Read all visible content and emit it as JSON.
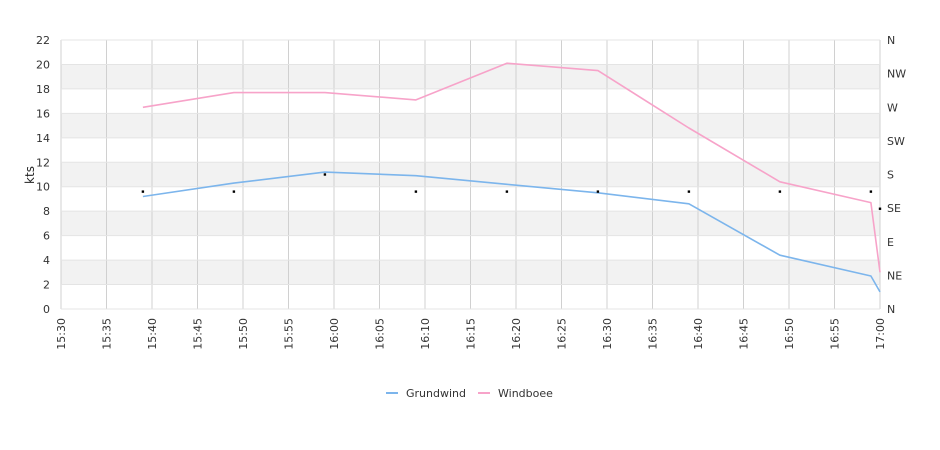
{
  "chart_data": {
    "type": "line",
    "ylabel": "kts",
    "ylim": [
      0,
      22
    ],
    "y_ticks": [
      "0",
      "2",
      "4",
      "6",
      "8",
      "10",
      "12",
      "14",
      "16",
      "18",
      "20",
      "22"
    ],
    "y2_ticks": [
      "N",
      "NE",
      "E",
      "SE",
      "S",
      "SW",
      "W",
      "NW",
      "N"
    ],
    "x_ticks": [
      "15:30",
      "15:35",
      "15:40",
      "15:45",
      "15:50",
      "15:55",
      "16:00",
      "16:05",
      "16:10",
      "16:15",
      "16:20",
      "16:25",
      "16:30",
      "16:35",
      "16:40",
      "16:45",
      "16:50",
      "16:55",
      "17:00"
    ],
    "x_range": [
      "15:30",
      "17:00"
    ],
    "grid": true,
    "legend_position": "bottom",
    "series": [
      {
        "name": "Grundwind",
        "color": "#7cb5ec",
        "x": [
          "15:39",
          "15:49",
          "15:59",
          "16:09",
          "16:19",
          "16:29",
          "16:39",
          "16:49",
          "16:59",
          "17:00"
        ],
        "values": [
          9.2,
          10.3,
          11.2,
          10.9,
          10.2,
          9.5,
          8.6,
          4.4,
          2.7,
          1.4
        ]
      },
      {
        "name": "Windboee",
        "color": "#f7a3c9",
        "x": [
          "15:39",
          "15:49",
          "15:59",
          "16:09",
          "16:19",
          "16:29",
          "16:39",
          "16:49",
          "16:59",
          "17:00"
        ],
        "values": [
          16.5,
          17.7,
          17.7,
          17.1,
          20.1,
          19.5,
          14.8,
          10.4,
          8.7,
          3.0
        ]
      }
    ],
    "direction_markers": {
      "x": [
        "15:39",
        "15:49",
        "15:59",
        "16:09",
        "16:19",
        "16:29",
        "16:39",
        "16:49",
        "16:59",
        "17:00"
      ],
      "values": [
        9.6,
        9.6,
        11.0,
        9.6,
        9.6,
        9.6,
        9.6,
        9.6,
        9.6,
        8.2
      ]
    }
  }
}
